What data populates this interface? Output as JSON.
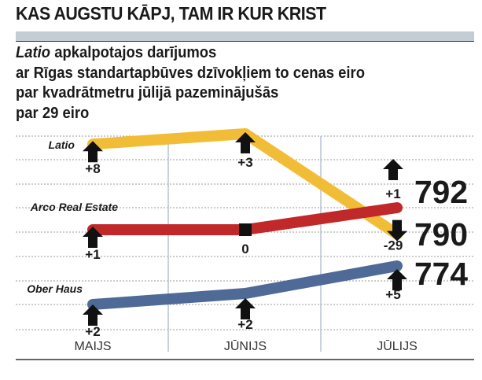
{
  "header": {
    "title": "KAS AUGSTU KĀPJ, TAM IR KUR KRIST"
  },
  "subtitle": {
    "italic": "Latio",
    "line1": " apkalpotajos darījumos",
    "line2": "ar Rīgas standartapbūves dzīvokļiem to cenas eiro",
    "line3": "par kvadrātmetru jūlijā pazeminājušās",
    "line4": "par 29 eiro"
  },
  "chart_data": {
    "type": "line",
    "title": "Latio apkalpotajos darījumos ar Rīgas standartapbūves dzīvokļiem to cenas eiro par kvadrātmetru jūlijā pazeminājušās par 29 eiro",
    "categories": [
      "MAIJS",
      "JŪNIJS",
      "JŪLIJS"
    ],
    "series": [
      {
        "name": "Latio",
        "color": "#f2bd36",
        "values": [
          816,
          819,
          790
        ],
        "changes": [
          "+8",
          "+3",
          "-29"
        ],
        "direction": [
          "up",
          "up",
          "down"
        ],
        "final_label": "790"
      },
      {
        "name": "Arco Real Estate",
        "color": "#c0282a",
        "values": [
          791,
          791,
          792
        ],
        "changes": [
          "+1",
          "0",
          "+1"
        ],
        "direction": [
          "up",
          "flat",
          "up"
        ],
        "final_label": "792"
      },
      {
        "name": "Ober Haus",
        "color": "#4f6a96",
        "values": [
          767,
          769,
          774
        ],
        "changes": [
          "+2",
          "+2",
          "+5"
        ],
        "direction": [
          "up",
          "up",
          "up"
        ],
        "final_label": "774"
      }
    ],
    "grid": true,
    "legend": "inline-left"
  }
}
